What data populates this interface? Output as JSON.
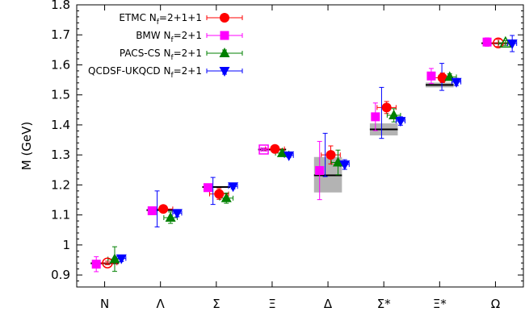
{
  "chart_data": {
    "type": "scatter",
    "title": "",
    "xlabel": "",
    "ylabel": "M (GeV)",
    "ylim": [
      0.86,
      1.8
    ],
    "yticks": [
      "0.9",
      "1",
      "1.1",
      "1.2",
      "1.3",
      "1.4",
      "1.5",
      "1.6",
      "1.7",
      "1.8"
    ],
    "categories": [
      "N",
      "Λ",
      "Σ",
      "Ξ",
      "Δ",
      "Σ*",
      "Ξ*",
      "Ω"
    ],
    "legend_position": "top-left",
    "grid": false,
    "experiment": {
      "values": [
        0.939,
        1.116,
        1.193,
        1.318,
        1.232,
        1.385,
        1.533,
        1.672
      ],
      "bands": [
        null,
        null,
        null,
        null,
        [
          1.175,
          1.293
        ],
        [
          1.365,
          1.405
        ],
        [
          1.525,
          1.541
        ],
        null
      ],
      "color": "#000000",
      "band_color": "#b3b3b3"
    },
    "series": [
      {
        "name": "ETMC N_f=2+1+1",
        "legend_base": "ETMC N",
        "legend_sub": "f",
        "legend_suffix": "=2+1+1",
        "marker": "circle",
        "color": "#ff0000",
        "offset": 0.05,
        "values": [
          0.94,
          1.12,
          1.17,
          1.32,
          1.3,
          1.458,
          1.557,
          1.673
        ],
        "errors": [
          0.006,
          0.012,
          0.018,
          0.01,
          0.03,
          0.02,
          0.016,
          0.012
        ],
        "xerr": 0.17,
        "open": [
          true,
          false,
          false,
          false,
          false,
          false,
          false,
          true
        ]
      },
      {
        "name": "BMW N_f=2+1",
        "legend_base": "BMW N",
        "legend_sub": "f",
        "legend_suffix": "=2+1",
        "marker": "square",
        "color": "#ff00ff",
        "offset": -0.15,
        "values": [
          0.936,
          1.114,
          1.191,
          1.318,
          1.248,
          1.427,
          1.563,
          1.676
        ],
        "errors": [
          0.025,
          0.004,
          0.01,
          0.005,
          0.097,
          0.046,
          0.025,
          0.014
        ],
        "xerr": 0.05,
        "open": [
          false,
          false,
          false,
          true,
          false,
          false,
          false,
          false
        ]
      },
      {
        "name": "PACS-CS N_f=2+1",
        "legend_base": "PACS-CS N",
        "legend_sub": "f",
        "legend_suffix": "=2+1",
        "marker": "triangle-up",
        "color": "#008000",
        "offset": 0.18,
        "values": [
          0.953,
          1.091,
          1.156,
          1.306,
          1.275,
          1.432,
          1.56,
          1.673
        ],
        "errors": [
          0.041,
          0.019,
          0.017,
          0.01,
          0.041,
          0.022,
          0.01,
          0.008
        ],
        "xerr": 0.12,
        "open": [
          false,
          false,
          false,
          false,
          false,
          false,
          false,
          true
        ]
      },
      {
        "name": "QCDSF-UKQCD N_f=2+1",
        "legend_base": "QCDSF-UKQCD N",
        "legend_sub": "f",
        "legend_suffix": "=2+1",
        "marker": "triangle-down",
        "color": "#0000ff",
        "offset": 0.3,
        "values": [
          0.955,
          1.106,
          1.195,
          1.298,
          1.268,
          1.413,
          1.543,
          1.671
        ],
        "errors": [
          0.01,
          0.012,
          0.008,
          0.006,
          0.016,
          0.014,
          0.012,
          0.027
        ],
        "xerr": 0.08,
        "open": [
          false,
          false,
          false,
          false,
          false,
          false,
          false,
          false
        ]
      }
    ],
    "extra_points": [
      {
        "series": 3,
        "category": 1,
        "offset": -0.06,
        "value": 1.12,
        "error": 0.06
      },
      {
        "series": 3,
        "category": 2,
        "offset": -0.06,
        "value": 1.18,
        "error": 0.045
      },
      {
        "series": 3,
        "category": 4,
        "offset": -0.05,
        "value": 1.3,
        "error": 0.072
      },
      {
        "series": 3,
        "category": 5,
        "offset": -0.04,
        "value": 1.44,
        "error": 0.085
      },
      {
        "series": 3,
        "category": 6,
        "offset": 0.04,
        "value": 1.56,
        "error": 0.045
      }
    ]
  }
}
